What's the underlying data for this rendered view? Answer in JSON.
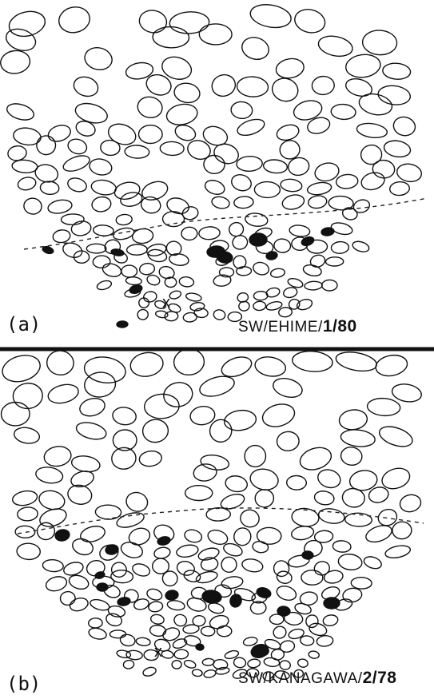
{
  "panels": [
    {
      "letter": "(a)",
      "marker": "x",
      "strain": [
        "SW/EHIME/",
        "1/80"
      ]
    },
    {
      "letter": "(b)",
      "marker": "x",
      "strain": [
        "SW/KANAGAWA/",
        "2/78"
      ]
    }
  ]
}
